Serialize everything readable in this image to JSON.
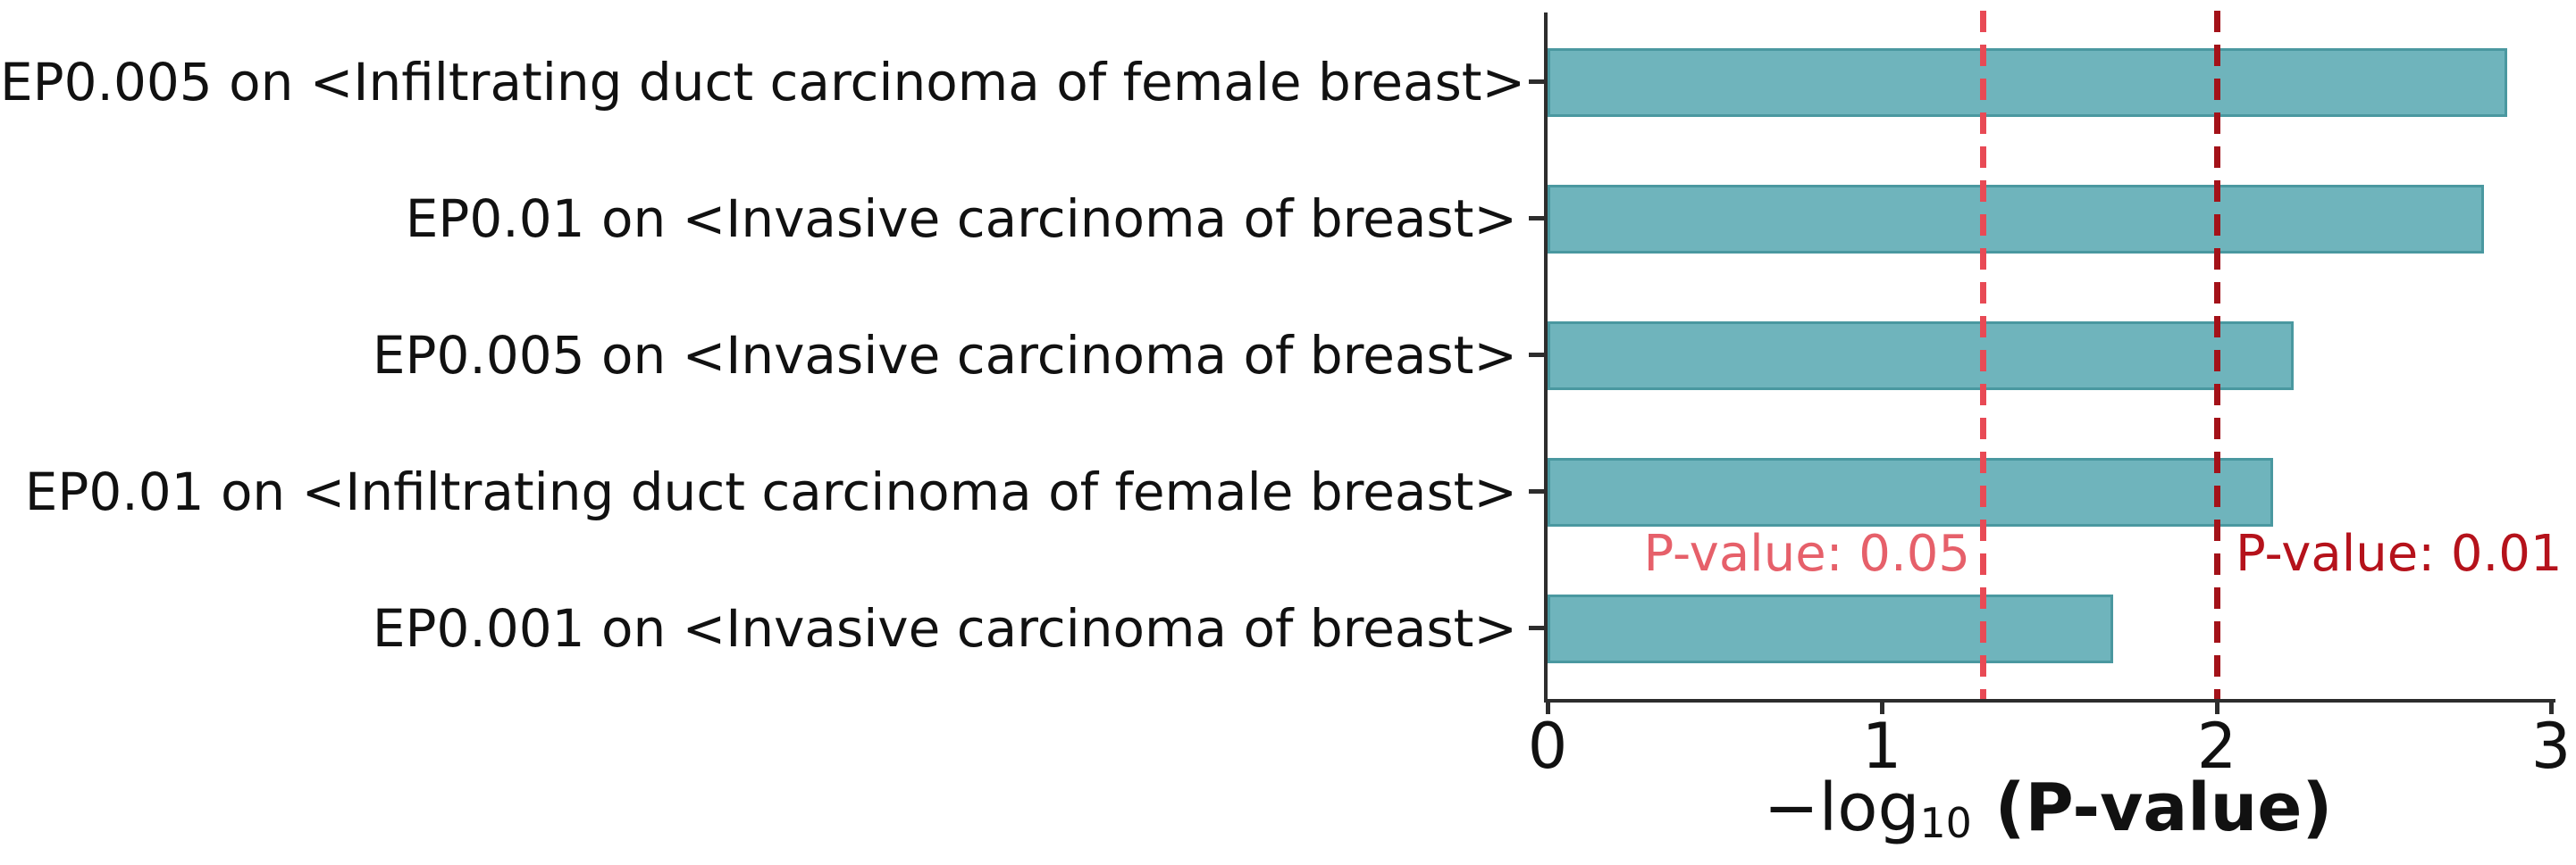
{
  "figure": {
    "background": "#ffffff",
    "axis_color": "#2d2d2d",
    "text_color": "#111111"
  },
  "chart_data": {
    "type": "bar",
    "orientation": "horizontal",
    "title": "",
    "categories": [
      "EP0.005 on <Infiltrating duct carcinoma of female breast>",
      "EP0.01 on <Invasive carcinoma of breast>",
      "EP0.005 on <Invasive carcinoma of breast>",
      "EP0.01 on <Infiltrating duct carcinoma of female breast>",
      "EP0.001 on <Invasive carcinoma of breast>"
    ],
    "values": [
      2.87,
      2.8,
      2.23,
      2.17,
      1.69
    ],
    "xlim": [
      0,
      3
    ],
    "xticks": [
      "0",
      "1",
      "2",
      "3"
    ],
    "xlabel": {
      "prefix": "−log",
      "subscript": "10",
      "suffix": " (P-value)"
    },
    "grid": false,
    "legend": null,
    "bar_color": "#6fb4bc",
    "bar_edge_color": "#4a98a0",
    "reference_lines": [
      {
        "x": 1.301,
        "label": "P-value: 0.05",
        "line_color": "#e84a55",
        "label_color": "#e6606a",
        "label_side": "left"
      },
      {
        "x": 2.0,
        "label": "P-value: 0.01",
        "line_color": "#a31219",
        "label_color": "#b5121b",
        "label_side": "right"
      }
    ]
  }
}
